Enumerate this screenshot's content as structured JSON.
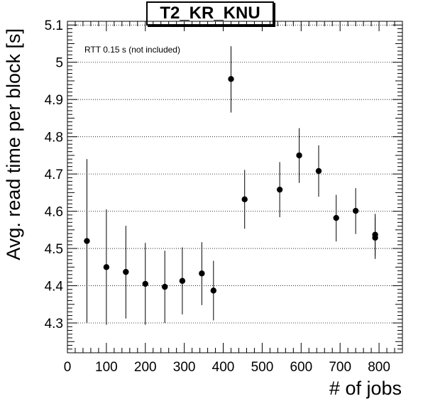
{
  "chart_data": {
    "type": "scatter",
    "title": "T2_KR_KNU",
    "xlabel": "# of jobs",
    "ylabel": "Avg. read time per block [s]",
    "annotation": "RTT 0.15 s (not included)",
    "xlim": [
      0,
      860
    ],
    "ylim": [
      4.22,
      5.11
    ],
    "x_ticks": [
      0,
      100,
      200,
      300,
      400,
      500,
      600,
      700,
      800
    ],
    "y_ticks": [
      4.3,
      4.4,
      4.5,
      4.6,
      4.7,
      4.8,
      4.9,
      5,
      5.1
    ],
    "grid": {
      "x": false,
      "y": true
    },
    "series": [
      {
        "points": [
          {
            "x": 50,
            "y": 4.52,
            "err_low": 4.3,
            "err_high": 4.74
          },
          {
            "x": 100,
            "y": 4.45,
            "err_low": 4.295,
            "err_high": 4.605
          },
          {
            "x": 150,
            "y": 4.437,
            "err_low": 4.312,
            "err_high": 4.561
          },
          {
            "x": 200,
            "y": 4.405,
            "err_low": 4.295,
            "err_high": 4.515
          },
          {
            "x": 250,
            "y": 4.397,
            "err_low": 4.3,
            "err_high": 4.494
          },
          {
            "x": 295,
            "y": 4.413,
            "err_low": 4.323,
            "err_high": 4.503
          },
          {
            "x": 345,
            "y": 4.433,
            "err_low": 4.348,
            "err_high": 4.517
          },
          {
            "x": 375,
            "y": 4.387,
            "err_low": 4.307,
            "err_high": 4.467
          },
          {
            "x": 420,
            "y": 4.955,
            "err_low": 4.865,
            "err_high": 5.043
          },
          {
            "x": 455,
            "y": 4.632,
            "err_low": 4.553,
            "err_high": 4.711
          },
          {
            "x": 545,
            "y": 4.658,
            "err_low": 4.584,
            "err_high": 4.732
          },
          {
            "x": 595,
            "y": 4.75,
            "err_low": 4.676,
            "err_high": 4.823
          },
          {
            "x": 645,
            "y": 4.708,
            "err_low": 4.639,
            "err_high": 4.777
          },
          {
            "x": 690,
            "y": 4.582,
            "err_low": 4.519,
            "err_high": 4.644
          },
          {
            "x": 740,
            "y": 4.601,
            "err_low": 4.539,
            "err_high": 4.662
          },
          {
            "x": 790,
            "y": 4.537,
            "err_low": 4.48,
            "err_high": 4.593
          },
          {
            "x": 790,
            "y": 4.529,
            "err_low": 4.472,
            "err_high": 4.585
          }
        ]
      }
    ]
  }
}
